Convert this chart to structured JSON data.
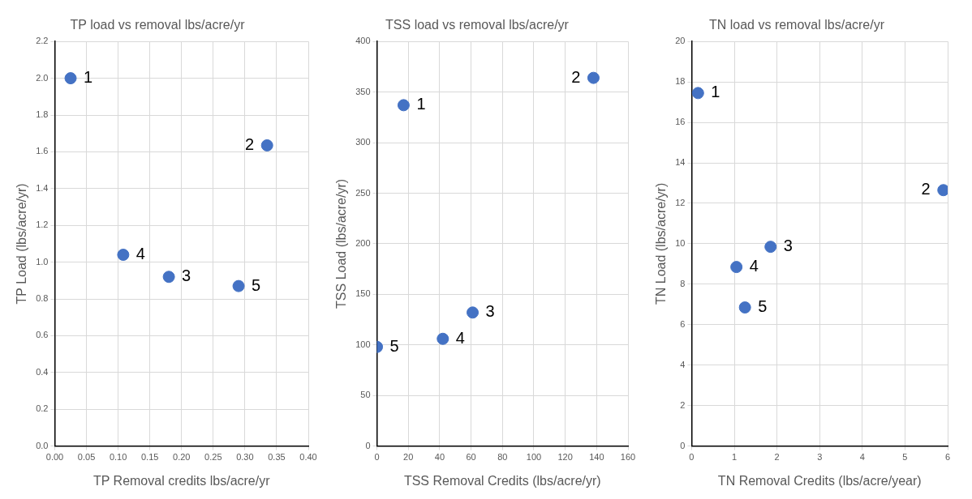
{
  "chart_data": [
    {
      "type": "scatter",
      "title": "TP load vs removal lbs/acre/yr",
      "xlabel": "TP Removal credits lbs/acre/yr",
      "ylabel": "TP Load (lbs/acre/yr)",
      "grid": true,
      "marker": "circle",
      "xlim": [
        0,
        0.4
      ],
      "xticks": [
        {
          "value": 0,
          "label": "0.00"
        },
        {
          "value": 0.05,
          "label": "0.05"
        },
        {
          "value": 0.1,
          "label": "0.10"
        },
        {
          "value": 0.15,
          "label": "0.15"
        },
        {
          "value": 0.2,
          "label": "0.20"
        },
        {
          "value": 0.25,
          "label": "0.25"
        },
        {
          "value": 0.3,
          "label": "0.30"
        },
        {
          "value": 0.35,
          "label": "0.35"
        },
        {
          "value": 0.4,
          "label": "0.40"
        }
      ],
      "ylim": [
        0,
        2.2
      ],
      "yticks": [
        {
          "value": 0,
          "label": "0.0"
        },
        {
          "value": 0.2,
          "label": "0.2"
        },
        {
          "value": 0.4,
          "label": "0.4"
        },
        {
          "value": 0.6,
          "label": "0.6"
        },
        {
          "value": 0.8,
          "label": "0.8"
        },
        {
          "value": 1,
          "label": "1.0"
        },
        {
          "value": 1.2,
          "label": "1.2"
        },
        {
          "value": 1.4,
          "label": "1.4"
        },
        {
          "value": 1.6,
          "label": "1.6"
        },
        {
          "value": 1.8,
          "label": "1.8"
        },
        {
          "value": 2,
          "label": "2.0"
        },
        {
          "value": 2.2,
          "label": "2.2"
        }
      ],
      "series": [
        {
          "color": "#4472c4",
          "x": [
            0.025,
            0.335,
            0.18,
            0.108,
            0.29
          ],
          "values": [
            2.0,
            1.635,
            0.92,
            1.04,
            0.87
          ]
        }
      ],
      "annotations": [
        {
          "text": "1",
          "x": 0.025,
          "y": 2.0
        },
        {
          "text": "2",
          "x": 0.335,
          "y": 1.635
        },
        {
          "text": "3",
          "x": 0.18,
          "y": 0.92
        },
        {
          "text": "4",
          "x": 0.108,
          "y": 1.04
        },
        {
          "text": "5",
          "x": 0.29,
          "y": 0.87
        }
      ]
    },
    {
      "type": "scatter",
      "title": "TSS load vs removal lbs/acre/yr",
      "xlabel": "TSS Removal Credits (lbs/acre/yr)",
      "ylabel": "TSS Load (lbs/acre/yr)",
      "grid": true,
      "marker": "circle",
      "xlim": [
        0,
        160
      ],
      "xticks": [
        0,
        20,
        40,
        60,
        80,
        100,
        120,
        140,
        160
      ],
      "ylim": [
        0,
        400
      ],
      "yticks": [
        0,
        50,
        100,
        150,
        200,
        250,
        300,
        350,
        400
      ],
      "series": [
        {
          "color": "#4472c4",
          "x": [
            17,
            138,
            61,
            42,
            0
          ],
          "values": [
            337,
            364,
            132,
            106,
            98
          ]
        }
      ],
      "annotations": [
        {
          "text": "1",
          "x": 17,
          "y": 337
        },
        {
          "text": "2",
          "x": 138,
          "y": 364
        },
        {
          "text": "3",
          "x": 61,
          "y": 132
        },
        {
          "text": "4",
          "x": 42,
          "y": 106
        },
        {
          "text": "5",
          "x": 0,
          "y": 98
        }
      ]
    },
    {
      "type": "scatter",
      "title": "TN load vs removal lbs/acre/yr",
      "xlabel": "TN Removal Credits (lbs/acre/year)",
      "ylabel": "TN Load (lbs/acre/yr)",
      "grid": true,
      "marker": "circle",
      "xlim": [
        0,
        6
      ],
      "xticks": [
        0,
        1,
        2,
        3,
        4,
        5,
        6
      ],
      "ylim": [
        0,
        20
      ],
      "yticks": [
        0,
        2,
        4,
        6,
        8,
        10,
        12,
        14,
        16,
        18,
        20
      ],
      "series": [
        {
          "color": "#4472c4",
          "x": [
            0.15,
            5.9,
            1.85,
            1.05,
            1.25
          ],
          "values": [
            17.45,
            12.65,
            9.85,
            8.85,
            6.85
          ]
        }
      ],
      "annotations": [
        {
          "text": "1",
          "x": 0.15,
          "y": 17.45
        },
        {
          "text": "2",
          "x": 5.9,
          "y": 12.65
        },
        {
          "text": "3",
          "x": 1.85,
          "y": 9.85
        },
        {
          "text": "4",
          "x": 1.05,
          "y": 8.85
        },
        {
          "text": "5",
          "x": 1.25,
          "y": 6.85
        }
      ]
    }
  ]
}
